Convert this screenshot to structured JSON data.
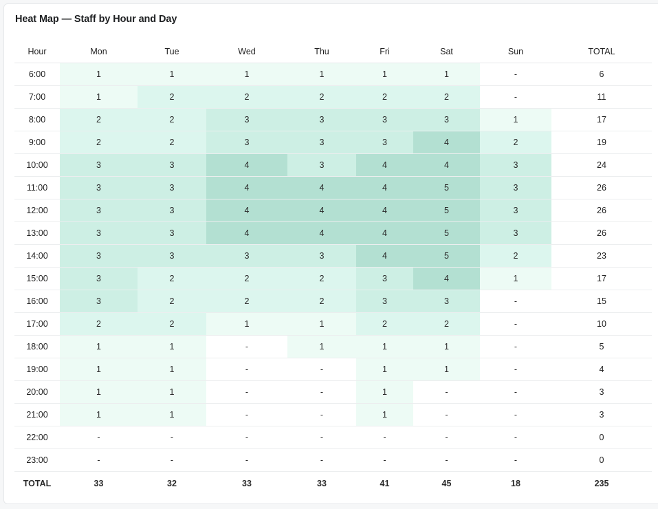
{
  "title": "Heat Map — Staff by Hour and Day",
  "columns": [
    "Hour",
    "Mon",
    "Tue",
    "Wed",
    "Thu",
    "Fri",
    "Sat",
    "Sun",
    "TOTAL"
  ],
  "rows": [
    {
      "hour": "6:00",
      "values": [
        1,
        1,
        1,
        1,
        1,
        1,
        0
      ],
      "total": "6"
    },
    {
      "hour": "7:00",
      "values": [
        1,
        2,
        2,
        2,
        2,
        2,
        0
      ],
      "total": "11"
    },
    {
      "hour": "8:00",
      "values": [
        2,
        2,
        3,
        3,
        3,
        3,
        1
      ],
      "total": "17"
    },
    {
      "hour": "9:00",
      "values": [
        2,
        2,
        3,
        3,
        3,
        4,
        2
      ],
      "total": "19"
    },
    {
      "hour": "10:00",
      "values": [
        3,
        3,
        4,
        3,
        4,
        4,
        3
      ],
      "total": "24"
    },
    {
      "hour": "11:00",
      "values": [
        3,
        3,
        4,
        4,
        4,
        5,
        3
      ],
      "total": "26"
    },
    {
      "hour": "12:00",
      "values": [
        3,
        3,
        4,
        4,
        4,
        5,
        3
      ],
      "total": "26"
    },
    {
      "hour": "13:00",
      "values": [
        3,
        3,
        4,
        4,
        4,
        5,
        3
      ],
      "total": "26"
    },
    {
      "hour": "14:00",
      "values": [
        3,
        3,
        3,
        3,
        4,
        5,
        2
      ],
      "total": "23"
    },
    {
      "hour": "15:00",
      "values": [
        3,
        2,
        2,
        2,
        3,
        4,
        1
      ],
      "total": "17"
    },
    {
      "hour": "16:00",
      "values": [
        3,
        2,
        2,
        2,
        3,
        3,
        0
      ],
      "total": "15"
    },
    {
      "hour": "17:00",
      "values": [
        2,
        2,
        1,
        1,
        2,
        2,
        0
      ],
      "total": "10"
    },
    {
      "hour": "18:00",
      "values": [
        1,
        1,
        0,
        1,
        1,
        1,
        0
      ],
      "total": "5"
    },
    {
      "hour": "19:00",
      "values": [
        1,
        1,
        0,
        0,
        1,
        1,
        0
      ],
      "total": "4"
    },
    {
      "hour": "20:00",
      "values": [
        1,
        1,
        0,
        0,
        1,
        0,
        0
      ],
      "total": "3"
    },
    {
      "hour": "21:00",
      "values": [
        1,
        1,
        0,
        0,
        1,
        0,
        0
      ],
      "total": "3"
    },
    {
      "hour": "22:00",
      "values": [
        0,
        0,
        0,
        0,
        0,
        0,
        0
      ],
      "total": "0"
    },
    {
      "hour": "23:00",
      "values": [
        0,
        0,
        0,
        0,
        0,
        0,
        0
      ],
      "total": "0"
    }
  ],
  "empty_symbol": "-",
  "totals": {
    "label": "TOTAL",
    "values": [
      "33",
      "32",
      "33",
      "33",
      "41",
      "45",
      "18"
    ],
    "grand": "235"
  },
  "colors": {
    "level_0": "#ffffff",
    "level_1": "#edfbf5",
    "level_2": "#dcf6ee",
    "level_3": "#cdefe4",
    "level_4": "#b3e0d2",
    "level_5": "#b3e0d2"
  }
}
